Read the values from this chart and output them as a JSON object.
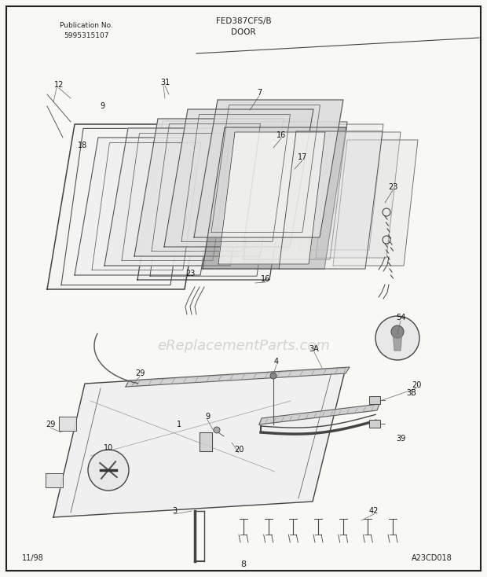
{
  "title_center": "FED387CFS/B\nDOOR",
  "pub_no": "Publication No.\n5995315107",
  "date_label": "11/98",
  "page_label": "8",
  "diagram_id": "A23CD018",
  "bg_color": "#f5f5f2",
  "border_color": "#222222",
  "lc": "#333333",
  "watermark": "eReplacementParts.com",
  "fig_width": 6.2,
  "fig_height": 7.34
}
